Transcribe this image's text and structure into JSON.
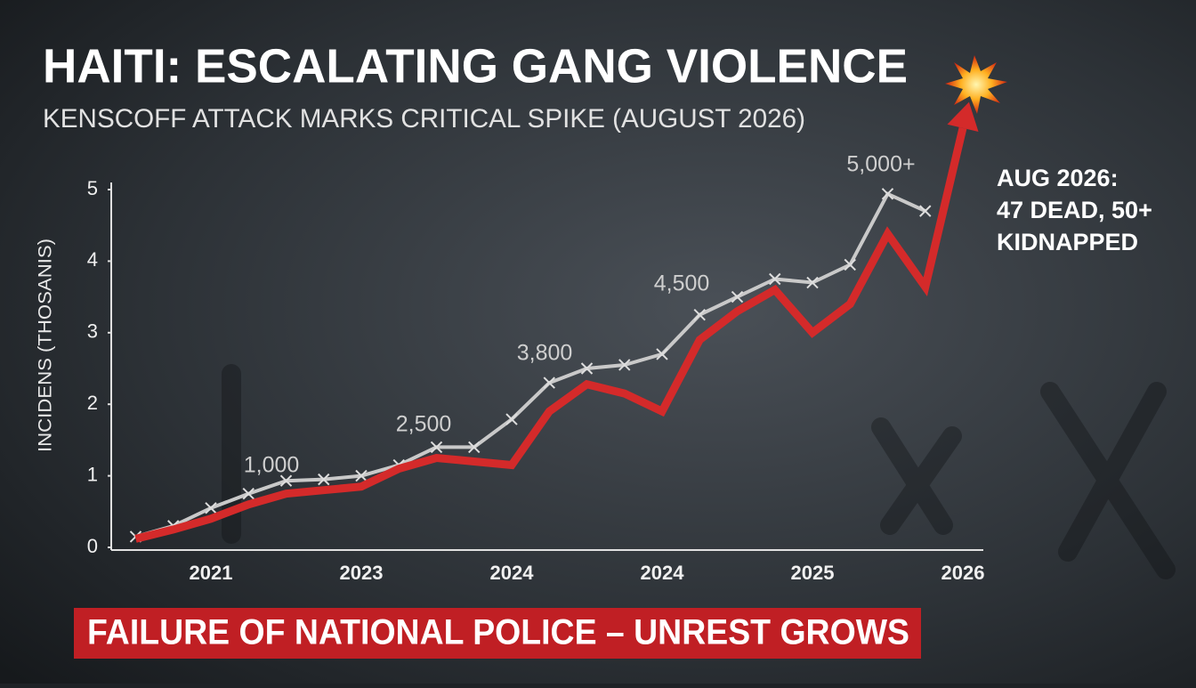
{
  "chart_data": {
    "type": "line",
    "title": "HAITI: ESCALATING GANG VIOLENCE",
    "subtitle": "KENSCOFF ATTACK MARKS CRITICAL SPIKE (AUGUST 2026)",
    "y_label": "INCIDENS (THOSANIS)",
    "categories": [
      null,
      null,
      "2021",
      null,
      null,
      null,
      "2023",
      null,
      null,
      null,
      "2024",
      null,
      null,
      null,
      "2024",
      null,
      null,
      null,
      "2025",
      null,
      null,
      null,
      "2026"
    ],
    "series": [
      {
        "color": "#c9c9c9",
        "values": [
          0.15,
          0.3,
          0.55,
          0.75,
          0.93,
          0.95,
          1.0,
          1.15,
          1.4,
          1.4,
          1.79,
          2.3,
          2.5,
          2.55,
          2.7,
          3.25,
          3.5,
          3.75,
          3.7,
          3.95,
          4.94,
          4.7,
          null
        ]
      },
      {
        "color": "#d42a2a",
        "values": [
          0.12,
          0.25,
          0.4,
          0.6,
          0.75,
          0.8,
          0.85,
          1.1,
          1.25,
          1.2,
          1.15,
          1.9,
          2.28,
          2.15,
          1.9,
          2.9,
          3.3,
          3.6,
          3.0,
          3.4,
          4.38,
          3.64,
          5.86
        ]
      }
    ],
    "annotations": [
      "1,000",
      "2,500",
      "3,800",
      "4,500",
      "5,000+"
    ],
    "callout": [
      "AUG 2026:",
      "47 DEAD, 50+",
      "KIDNAPPED"
    ],
    "banner": "FAILURE OF NATIONAL POLICE – UNREST GROWS",
    "ylim": [
      0,
      5
    ],
    "yticks": [
      0,
      1,
      2,
      3,
      4,
      5
    ],
    "grid": false
  }
}
